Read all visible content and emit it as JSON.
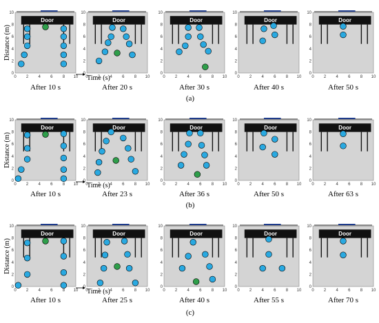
{
  "y_axis_title": "Distance (m)",
  "x_axis_title": "Time (s)",
  "door_label": "Door",
  "colors": {
    "room": "#d4d4d4",
    "wall": "#111111",
    "frame": "#8a8a8a",
    "door_marker": "#1d3a8a",
    "person": "#29a9e1",
    "leader": "#2e9e4a",
    "outline": "#000000"
  },
  "axis": {
    "min": 0,
    "max": 10,
    "ticks": [
      0,
      2,
      4,
      6,
      8,
      10
    ]
  },
  "rows": [
    {
      "tag": "(a)",
      "panels": [
        {
          "caption": "After 10 s",
          "show_time_axis": true,
          "persons": [
            [
              1,
              1.5
            ],
            [
              1.5,
              3
            ],
            [
              2,
              4.5
            ],
            [
              2,
              6
            ],
            [
              2,
              7.3
            ],
            [
              8,
              1.5
            ],
            [
              8,
              3
            ],
            [
              8,
              4.5
            ],
            [
              8,
              6
            ],
            [
              8,
              7.3
            ]
          ],
          "leaders": [
            [
              5,
              7.6
            ]
          ]
        },
        {
          "caption": "After 20 s",
          "show_time_axis": false,
          "persons": [
            [
              2,
              2
            ],
            [
              3,
              3.5
            ],
            [
              3.5,
              5
            ],
            [
              4,
              6
            ],
            [
              4.2,
              7.5
            ],
            [
              6,
              7.3
            ],
            [
              6.5,
              6
            ],
            [
              7,
              4.8
            ],
            [
              7.5,
              3
            ]
          ],
          "leaders": [
            [
              5,
              3.3
            ]
          ]
        },
        {
          "caption": "After 30 s",
          "show_time_axis": false,
          "persons": [
            [
              2.5,
              3.5
            ],
            [
              3.5,
              4.5
            ],
            [
              4,
              6
            ],
            [
              4,
              7.5
            ],
            [
              5.8,
              7.5
            ],
            [
              6,
              6
            ],
            [
              6.5,
              4.7
            ],
            [
              7.3,
              3.6
            ]
          ],
          "leaders": [
            [
              6.8,
              1
            ]
          ]
        },
        {
          "caption": "After 40 s",
          "show_time_axis": false,
          "persons": [
            [
              4,
              5.3
            ],
            [
              4.2,
              7.3
            ],
            [
              5.8,
              7.8
            ],
            [
              6,
              6.3
            ]
          ],
          "leaders": []
        },
        {
          "caption": "After 50 s",
          "show_time_axis": false,
          "persons": [
            [
              5,
              7.7
            ],
            [
              5,
              6.3
            ]
          ],
          "leaders": []
        }
      ]
    },
    {
      "tag": "(b)",
      "panels": [
        {
          "caption": "After 10 s",
          "show_time_axis": true,
          "persons": [
            [
              0.5,
              0.3
            ],
            [
              1,
              1.8
            ],
            [
              2,
              3.5
            ],
            [
              2,
              5.3
            ],
            [
              2,
              7.5
            ],
            [
              8,
              0.3
            ],
            [
              8,
              1.8
            ],
            [
              8,
              3.7
            ],
            [
              8,
              5.7
            ],
            [
              8,
              7.7
            ]
          ],
          "leaders": [
            [
              5,
              7.6
            ]
          ]
        },
        {
          "caption": "After 23 s",
          "show_time_axis": false,
          "persons": [
            [
              1.8,
              1.3
            ],
            [
              2,
              3
            ],
            [
              2.5,
              4.8
            ],
            [
              3.2,
              6.5
            ],
            [
              4,
              8
            ],
            [
              6,
              7
            ],
            [
              6.8,
              5.3
            ],
            [
              7.3,
              3.5
            ],
            [
              8,
              1.5
            ]
          ],
          "leaders": [
            [
              4.8,
              3.3
            ]
          ]
        },
        {
          "caption": "After 36 s",
          "show_time_axis": false,
          "persons": [
            [
              2.8,
              2.5
            ],
            [
              3.3,
              4.3
            ],
            [
              4,
              6
            ],
            [
              4.2,
              7.8
            ],
            [
              6,
              7.8
            ],
            [
              6.2,
              5.8
            ],
            [
              6.7,
              4.2
            ],
            [
              7,
              2.5
            ]
          ],
          "leaders": [
            [
              5.5,
              1
            ]
          ]
        },
        {
          "caption": "After 50 s",
          "show_time_axis": false,
          "persons": [
            [
              4,
              5.5
            ],
            [
              4.2,
              7.8
            ],
            [
              6,
              6.8
            ],
            [
              6,
              4.3
            ]
          ],
          "leaders": []
        },
        {
          "caption": "After 63 s",
          "show_time_axis": false,
          "persons": [
            [
              5,
              7.7
            ],
            [
              5,
              5.7
            ]
          ],
          "leaders": []
        }
      ]
    },
    {
      "tag": "(c)",
      "panels": [
        {
          "caption": "After 10 s",
          "show_time_axis": true,
          "persons": [
            [
              0.5,
              0.2
            ],
            [
              2,
              2
            ],
            [
              2,
              4.7
            ],
            [
              2,
              7.2
            ],
            [
              8,
              0.2
            ],
            [
              8,
              2.3
            ],
            [
              8,
              5
            ],
            [
              8,
              7.5
            ]
          ],
          "leaders": [
            [
              5,
              7.5
            ]
          ]
        },
        {
          "caption": "After 25 s",
          "show_time_axis": false,
          "persons": [
            [
              2.2,
              0.6
            ],
            [
              2.8,
              3
            ],
            [
              3,
              5.2
            ],
            [
              3.3,
              7.3
            ],
            [
              6.2,
              7.5
            ],
            [
              6.7,
              5.3
            ],
            [
              7,
              3
            ],
            [
              8,
              0.6
            ]
          ],
          "leaders": [
            [
              5,
              3.3
            ]
          ]
        },
        {
          "caption": "After 40 s",
          "show_time_axis": false,
          "persons": [
            [
              3,
              3
            ],
            [
              4,
              5
            ],
            [
              4.8,
              7.3
            ],
            [
              6.8,
              5.3
            ],
            [
              7.5,
              3.3
            ],
            [
              8,
              1.2
            ]
          ],
          "leaders": [
            [
              5.3,
              0.8
            ]
          ]
        },
        {
          "caption": "After 55 s",
          "show_time_axis": false,
          "persons": [
            [
              4,
              3
            ],
            [
              5,
              5.3
            ],
            [
              5,
              7.8
            ],
            [
              7.2,
              3
            ]
          ],
          "leaders": []
        },
        {
          "caption": "After 70 s",
          "show_time_axis": false,
          "persons": [
            [
              5,
              7.5
            ],
            [
              5,
              5.2
            ]
          ],
          "leaders": []
        }
      ]
    }
  ]
}
